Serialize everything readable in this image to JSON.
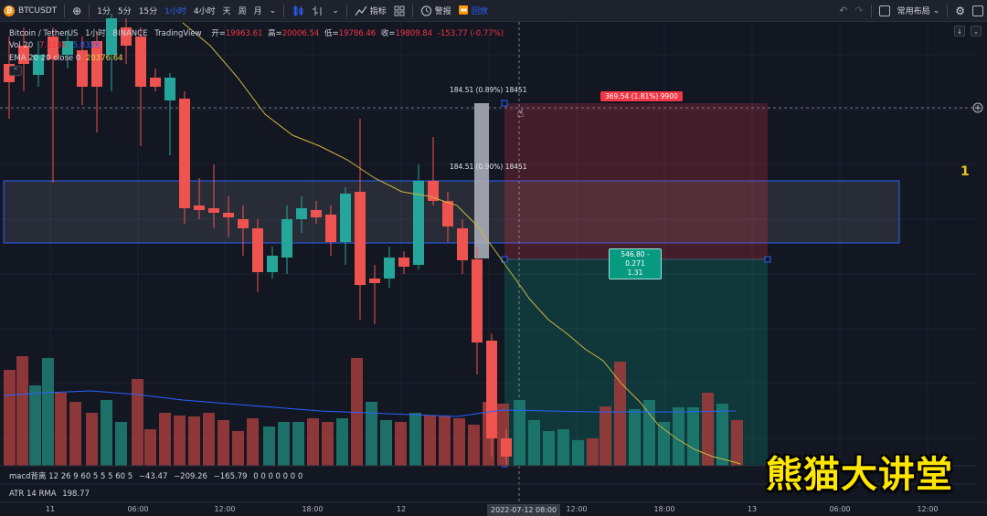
{
  "toolbar": {
    "symbol": "BTCUSDT",
    "symbol_logo": "₿",
    "add_label": "⊕",
    "intervals": [
      {
        "label": "1分",
        "active": false
      },
      {
        "label": "5分",
        "active": false
      },
      {
        "label": "15分",
        "active": false
      },
      {
        "label": "1小时",
        "active": true
      },
      {
        "label": "4小时",
        "active": false
      },
      {
        "label": "天",
        "active": false
      },
      {
        "label": "周",
        "active": false
      },
      {
        "label": "月",
        "active": false
      }
    ],
    "interval_more": "⌄",
    "indicators_label": "指标",
    "alert_label": "警报",
    "replay_label": "回放",
    "layout_label": "常用布局",
    "undo_icon": "undo-icon",
    "redo_icon": "redo-icon",
    "settings_icon": "gear-icon"
  },
  "legend": {
    "title": "Bitcoin / TetherUS",
    "interval": "1小时",
    "exchange": "BINANCE",
    "source": "TradingView",
    "open_label": "开=",
    "open": "19963.61",
    "high_label": "高=",
    "high": "20006.54",
    "low_label": "低=",
    "low": "19786.46",
    "close_label": "收=",
    "close": "19809.84",
    "change": "-153.77 (-0.77%)",
    "vol_label": "Vol 20",
    "vol_a": "7.318K",
    "vol_b": "5.832K",
    "ema_label": "EMA 20 20 close 0",
    "ema_value": "20376.64"
  },
  "macd": {
    "label": "macd背离 12 26 9 60 5 5 5 60 5",
    "v1": "−43.47",
    "v2": "−209.26",
    "v3": "−165.79",
    "rest": "0 0 0 0 0 0 0"
  },
  "atr": {
    "label": "ATR 14 RMA",
    "value": "198.77"
  },
  "annotations": {
    "target_label": "369.54 (1.81%) 9900",
    "risk_label_line1": "546.80 - 0.271",
    "risk_label_line2": "1.31",
    "measure_top": "184.51 (0.89%) 18451",
    "measure_mid": "184.51 (0.90%) 18451",
    "side_number": "1"
  },
  "time_axis": {
    "ticks": [
      {
        "label": "11"
      },
      {
        "label": "06:00"
      },
      {
        "label": "12:00"
      },
      {
        "label": "18:00"
      },
      {
        "label": "12"
      },
      {
        "label": "12:00"
      },
      {
        "label": "18:00"
      },
      {
        "label": "13"
      },
      {
        "label": "06:00"
      },
      {
        "label": "12:00"
      }
    ],
    "cursor_label": "2022-07-12  08:00"
  },
  "watermark": "熊猫大讲堂",
  "colors": {
    "up": "#26a69a",
    "down": "#ef5350",
    "ema": "#c9b83a",
    "zone_border": "#2962ff",
    "accent": "#2962ff"
  }
}
